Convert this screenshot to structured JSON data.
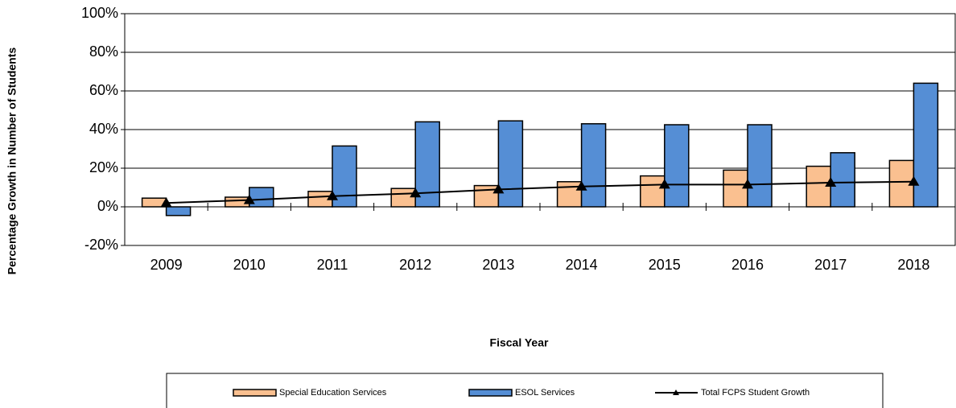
{
  "chart_data": {
    "type": "bar",
    "categories": [
      "2009",
      "2010",
      "2011",
      "2012",
      "2013",
      "2014",
      "2015",
      "2016",
      "2017",
      "2018"
    ],
    "series": [
      {
        "name": "Special Education Services",
        "type": "bar",
        "color": "#fac090",
        "values": [
          4.5,
          5,
          8,
          9.5,
          11,
          13,
          16,
          19,
          21,
          24
        ]
      },
      {
        "name": "ESOL Services",
        "type": "bar",
        "color": "#558ed5",
        "values": [
          -4.5,
          10,
          31.5,
          44,
          44.5,
          43,
          42.5,
          42.5,
          28,
          64
        ]
      },
      {
        "name": "Total FCPS Student Growth",
        "type": "line",
        "color": "#000000",
        "values": [
          2,
          3.5,
          5.5,
          7,
          9,
          10.5,
          11.5,
          11.5,
          12.5,
          13
        ]
      }
    ],
    "x_label": "Fiscal Year",
    "y_label": "Percentage Growth in Number of Students",
    "ylim": [
      -20,
      100
    ],
    "yticks": [
      {
        "value": -20,
        "label": "-20%"
      },
      {
        "value": 0,
        "label": "0%"
      },
      {
        "value": 20,
        "label": "20%"
      },
      {
        "value": 40,
        "label": "40%"
      },
      {
        "value": 60,
        "label": "60%"
      },
      {
        "value": 80,
        "label": "80%"
      },
      {
        "value": 100,
        "label": "100%"
      }
    ],
    "grid": true,
    "legend": "bottom"
  }
}
